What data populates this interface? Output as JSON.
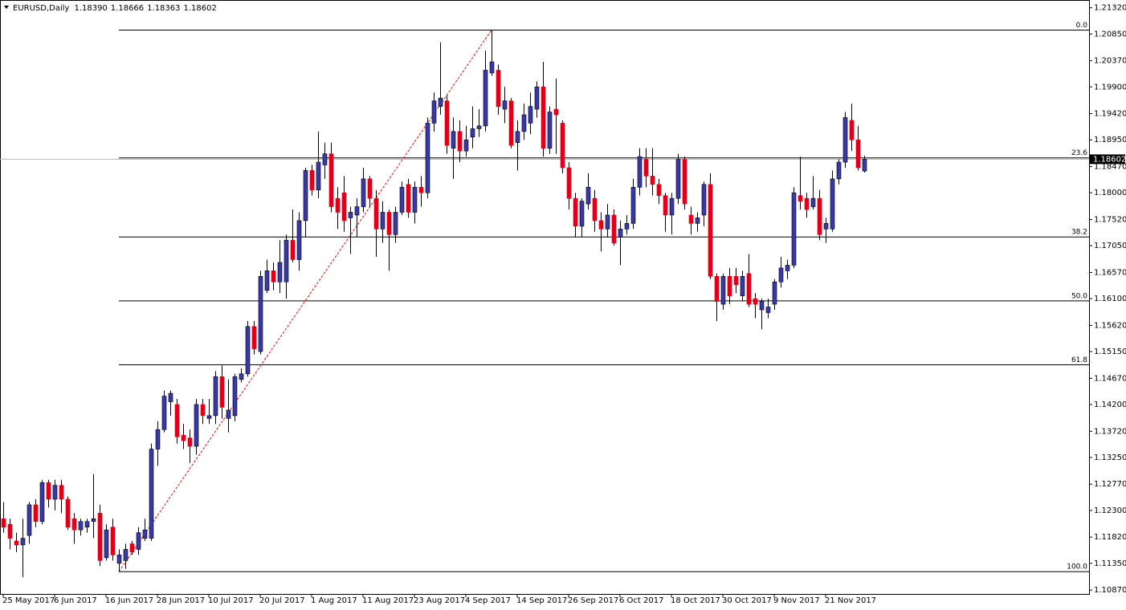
{
  "chart_data": {
    "type": "candlestick",
    "title": "EURUSD,Daily",
    "last_bar_labels": [
      "1.18390",
      "1.18666",
      "1.18363",
      "1.18602"
    ],
    "categories": [
      "25 May 2017",
      null,
      null,
      null,
      null,
      null,
      null,
      null,
      "6 Jun 2017",
      null,
      null,
      null,
      null,
      null,
      null,
      null,
      "16 Jun 2017",
      null,
      null,
      null,
      null,
      null,
      null,
      null,
      "28 Jun 2017",
      null,
      null,
      null,
      null,
      null,
      null,
      null,
      "10 Jul 2017",
      null,
      null,
      null,
      null,
      null,
      null,
      null,
      "20 Jul 2017",
      null,
      null,
      null,
      null,
      null,
      null,
      null,
      "1 Aug 2017",
      null,
      null,
      null,
      null,
      null,
      null,
      null,
      "11 Aug 2017",
      null,
      null,
      null,
      null,
      null,
      null,
      null,
      "23 Aug 2017",
      null,
      null,
      null,
      null,
      null,
      null,
      null,
      "4 Sep 2017",
      null,
      null,
      null,
      null,
      null,
      null,
      null,
      "14 Sep 2017",
      null,
      null,
      null,
      null,
      null,
      null,
      null,
      "26 Sep 2017",
      null,
      null,
      null,
      null,
      null,
      null,
      null,
      "6 Oct 2017",
      null,
      null,
      null,
      null,
      null,
      null,
      null,
      "18 Oct 2017",
      null,
      null,
      null,
      null,
      null,
      null,
      null,
      "30 Oct 2017",
      null,
      null,
      null,
      null,
      null,
      null,
      null,
      "9 Nov 2017",
      null,
      null,
      null,
      null,
      null,
      null,
      null,
      "21 Nov 2017",
      null,
      null,
      null,
      null,
      null,
      null
    ],
    "open": [
      1.1215,
      1.1205,
      1.1175,
      1.1168,
      1.1185,
      1.124,
      1.121,
      1.128,
      1.125,
      1.1275,
      1.125,
      1.1215,
      1.1195,
      1.12,
      1.121,
      1.1225,
      1.1145,
      1.12,
      1.1135,
      1.114,
      1.117,
      1.116,
      1.118,
      1.118,
      1.134,
      1.1375,
      1.1425,
      1.142,
      1.1365,
      1.136,
      1.1345,
      1.142,
      1.1395,
      1.14,
      1.147,
      1.1395,
      1.14,
      1.1465,
      1.1475,
      1.156,
      1.1515,
      1.1625,
      1.166,
      1.164,
      1.164,
      1.1715,
      1.168,
      1.175,
      1.184,
      1.1805,
      1.185,
      1.187,
      1.179,
      1.18,
      1.1755,
      1.176,
      1.1775,
      1.1825,
      1.179,
      1.1735,
      1.1765,
      1.1725,
      1.1765,
      1.1815,
      1.1765,
      1.181,
      1.18,
      1.1925,
      1.1955,
      1.1965,
      1.188,
      1.191,
      1.1875,
      1.19,
      1.1915,
      1.192,
      1.2015,
      1.202,
      1.195,
      1.1965,
      1.189,
      1.191,
      1.1925,
      1.195,
      1.199,
      1.188,
      1.195,
      1.1925,
      1.1845,
      1.179,
      1.174,
      1.178,
      1.179,
      1.175,
      1.1735,
      1.176,
      1.172,
      1.1735,
      1.1745,
      1.181,
      1.186,
      1.183,
      1.1815,
      1.1795,
      1.176,
      1.179,
      1.186,
      1.176,
      1.1745,
      1.176,
      1.1815,
      1.165,
      1.16,
      1.165,
      1.165,
      1.1615,
      1.1655,
      1.161,
      1.159,
      1.1585,
      1.16,
      1.164,
      1.166,
      1.167,
      1.1795,
      1.179,
      1.1775,
      1.179,
      1.1735,
      1.1735,
      1.1825,
      1.1855,
      1.193,
      1.1895,
      1.1839
    ],
    "high": [
      1.1245,
      1.1215,
      1.119,
      1.1215,
      1.1245,
      1.125,
      1.1285,
      1.1285,
      1.1285,
      1.1285,
      1.1255,
      1.1225,
      1.1215,
      1.1215,
      1.1295,
      1.124,
      1.1205,
      1.1215,
      1.116,
      1.117,
      1.1175,
      1.12,
      1.1215,
      1.135,
      1.139,
      1.1445,
      1.1445,
      1.143,
      1.1385,
      1.1375,
      1.143,
      1.143,
      1.143,
      1.148,
      1.149,
      1.1465,
      1.1475,
      1.1485,
      1.157,
      1.157,
      1.166,
      1.168,
      1.1675,
      1.1715,
      1.1725,
      1.177,
      1.1765,
      1.1845,
      1.185,
      1.191,
      1.189,
      1.189,
      1.181,
      1.183,
      1.1775,
      1.179,
      1.1845,
      1.183,
      1.1805,
      1.1785,
      1.177,
      1.1775,
      1.182,
      1.1825,
      1.182,
      1.183,
      1.1935,
      1.198,
      1.207,
      1.1975,
      1.1935,
      1.193,
      1.192,
      1.1955,
      1.195,
      1.2055,
      1.2092,
      1.203,
      1.199,
      1.197,
      1.193,
      1.196,
      1.198,
      1.2,
      1.2035,
      1.1955,
      1.2005,
      1.193,
      1.1855,
      1.18,
      1.179,
      1.1835,
      1.1805,
      1.1765,
      1.178,
      1.177,
      1.175,
      1.176,
      1.1825,
      1.188,
      1.188,
      1.188,
      1.1825,
      1.18,
      1.18,
      1.187,
      1.1865,
      1.1775,
      1.1765,
      1.182,
      1.1835,
      1.1655,
      1.1655,
      1.1665,
      1.1665,
      1.166,
      1.169,
      1.162,
      1.161,
      1.161,
      1.1645,
      1.1685,
      1.168,
      1.181,
      1.1865,
      1.18,
      1.183,
      1.1805,
      1.1755,
      1.184,
      1.186,
      1.1945,
      1.196,
      1.192,
      1.18666
    ],
    "low": [
      1.119,
      1.116,
      1.1155,
      1.111,
      1.117,
      1.12,
      1.1205,
      1.1235,
      1.123,
      1.1225,
      1.1195,
      1.117,
      1.1185,
      1.119,
      1.118,
      1.113,
      1.114,
      1.114,
      1.112,
      1.1125,
      1.115,
      1.115,
      1.1175,
      1.1175,
      1.131,
      1.137,
      1.14,
      1.135,
      1.134,
      1.1315,
      1.133,
      1.1385,
      1.1385,
      1.1385,
      1.1395,
      1.137,
      1.139,
      1.146,
      1.147,
      1.151,
      1.151,
      1.162,
      1.1625,
      1.162,
      1.161,
      1.1675,
      1.166,
      1.172,
      1.1795,
      1.179,
      1.1825,
      1.1765,
      1.1735,
      1.173,
      1.169,
      1.172,
      1.1765,
      1.1775,
      1.1685,
      1.171,
      1.166,
      1.171,
      1.176,
      1.1755,
      1.1745,
      1.1775,
      1.179,
      1.191,
      1.194,
      1.187,
      1.1825,
      1.1855,
      1.1865,
      1.188,
      1.19,
      1.191,
      1.201,
      1.194,
      1.1925,
      1.188,
      1.184,
      1.1895,
      1.1905,
      1.1935,
      1.1865,
      1.187,
      1.187,
      1.1835,
      1.177,
      1.172,
      1.172,
      1.177,
      1.173,
      1.1695,
      1.172,
      1.1705,
      1.167,
      1.1725,
      1.1735,
      1.1795,
      1.181,
      1.1795,
      1.178,
      1.173,
      1.1725,
      1.178,
      1.177,
      1.1725,
      1.173,
      1.174,
      1.1645,
      1.157,
      1.159,
      1.16,
      1.162,
      1.1605,
      1.1595,
      1.1575,
      1.1555,
      1.1575,
      1.159,
      1.163,
      1.1645,
      1.1665,
      1.177,
      1.1755,
      1.177,
      1.1715,
      1.171,
      1.173,
      1.1815,
      1.1845,
      1.1875,
      1.184,
      1.18363
    ],
    "close": [
      1.12,
      1.118,
      1.1168,
      1.118,
      1.124,
      1.121,
      1.128,
      1.125,
      1.1275,
      1.125,
      1.12,
      1.1195,
      1.121,
      1.121,
      1.1215,
      1.114,
      1.1195,
      1.115,
      1.115,
      1.116,
      1.1155,
      1.119,
      1.1195,
      1.134,
      1.1375,
      1.1435,
      1.144,
      1.1362,
      1.1355,
      1.1345,
      1.142,
      1.14,
      1.14,
      1.147,
      1.1415,
      1.141,
      1.147,
      1.1475,
      1.156,
      1.152,
      1.165,
      1.166,
      1.164,
      1.1675,
      1.1715,
      1.168,
      1.175,
      1.184,
      1.1805,
      1.1855,
      1.187,
      1.1775,
      1.1765,
      1.175,
      1.1765,
      1.1775,
      1.1825,
      1.179,
      1.1735,
      1.1765,
      1.1725,
      1.1765,
      1.181,
      1.1765,
      1.181,
      1.18,
      1.1925,
      1.1965,
      1.197,
      1.1885,
      1.191,
      1.1875,
      1.1895,
      1.1915,
      1.192,
      1.202,
      1.2035,
      1.1955,
      1.1965,
      1.1885,
      1.191,
      1.194,
      1.1955,
      1.199,
      1.188,
      1.1945,
      1.194,
      1.1845,
      1.179,
      1.174,
      1.1785,
      1.181,
      1.175,
      1.1735,
      1.176,
      1.171,
      1.1735,
      1.1745,
      1.181,
      1.1865,
      1.183,
      1.1815,
      1.1795,
      1.176,
      1.179,
      1.186,
      1.178,
      1.1745,
      1.1755,
      1.1815,
      1.165,
      1.1605,
      1.165,
      1.1615,
      1.1635,
      1.165,
      1.16,
      1.16,
      1.1605,
      1.1595,
      1.164,
      1.1665,
      1.167,
      1.18,
      1.1785,
      1.177,
      1.179,
      1.1725,
      1.1745,
      1.1825,
      1.1855,
      1.1935,
      1.1895,
      1.1845,
      1.18602
    ],
    "up_color": "#3a3aa6",
    "down_color": "#e0001b",
    "wick_color": "#000000",
    "ylim": [
      1.108,
      1.2146
    ],
    "yticks": [
      {
        "value": 1.2132,
        "label": "1.21320"
      },
      {
        "value": 1.2085,
        "label": "1.20850"
      },
      {
        "value": 1.2037,
        "label": "1.20370"
      },
      {
        "value": 1.199,
        "label": "1.19900"
      },
      {
        "value": 1.1942,
        "label": "1.19420"
      },
      {
        "value": 1.1895,
        "label": "1.18950"
      },
      {
        "value": 1.1847,
        "label": "1.18470"
      },
      {
        "value": 1.18,
        "label": "1.18000"
      },
      {
        "value": 1.1752,
        "label": "1.17520"
      },
      {
        "value": 1.1705,
        "label": "1.17050"
      },
      {
        "value": 1.1657,
        "label": "1.16570"
      },
      {
        "value": 1.161,
        "label": "1.16100"
      },
      {
        "value": 1.1562,
        "label": "1.15620"
      },
      {
        "value": 1.1515,
        "label": "1.15150"
      },
      {
        "value": 1.1467,
        "label": "1.14670"
      },
      {
        "value": 1.142,
        "label": "1.14200"
      },
      {
        "value": 1.1372,
        "label": "1.13720"
      },
      {
        "value": 1.1325,
        "label": "1.13250"
      },
      {
        "value": 1.1277,
        "label": "1.12770"
      },
      {
        "value": 1.123,
        "label": "1.12300"
      },
      {
        "value": 1.1182,
        "label": "1.11820"
      },
      {
        "value": 1.1135,
        "label": "1.11350"
      },
      {
        "value": 1.1087,
        "label": "1.10870"
      }
    ],
    "fibonacci": {
      "high": 1.2092,
      "low": 1.112,
      "levels": [
        {
          "value": 0,
          "label": "0.0"
        },
        23.6,
        38.2,
        {
          "value": 50,
          "label": "50.0"
        },
        61.8,
        {
          "value": 100,
          "label": "100.0"
        }
      ],
      "line_color": "#000000",
      "trend_color": "#ff0000"
    },
    "price_line_color": "#b4b4b4"
  }
}
